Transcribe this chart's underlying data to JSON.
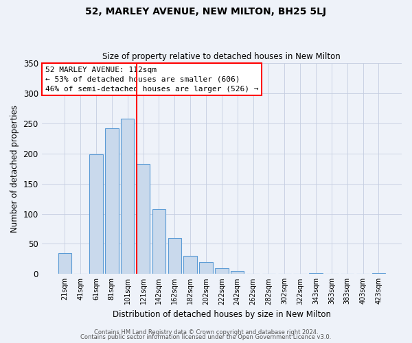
{
  "title": "52, MARLEY AVENUE, NEW MILTON, BH25 5LJ",
  "subtitle": "Size of property relative to detached houses in New Milton",
  "xlabel": "Distribution of detached houses by size in New Milton",
  "ylabel": "Number of detached properties",
  "bar_labels": [
    "21sqm",
    "41sqm",
    "61sqm",
    "81sqm",
    "101sqm",
    "121sqm",
    "142sqm",
    "162sqm",
    "182sqm",
    "202sqm",
    "222sqm",
    "242sqm",
    "262sqm",
    "282sqm",
    "302sqm",
    "322sqm",
    "343sqm",
    "363sqm",
    "383sqm",
    "403sqm",
    "423sqm"
  ],
  "bar_values": [
    34,
    0,
    199,
    242,
    258,
    183,
    107,
    60,
    30,
    20,
    10,
    5,
    0,
    0,
    0,
    0,
    2,
    0,
    0,
    0,
    2
  ],
  "bar_color": "#c9d9ec",
  "bar_edgecolor": "#5b9bd5",
  "vline_color": "red",
  "vline_index": 5,
  "ylim": [
    0,
    350
  ],
  "yticks": [
    0,
    50,
    100,
    150,
    200,
    250,
    300,
    350
  ],
  "annotation_title": "52 MARLEY AVENUE: 112sqm",
  "annotation_line1": "← 53% of detached houses are smaller (606)",
  "annotation_line2": "46% of semi-detached houses are larger (526) →",
  "footer1": "Contains HM Land Registry data © Crown copyright and database right 2024.",
  "footer2": "Contains public sector information licensed under the Open Government Licence v3.0.",
  "background_color": "#eef2f9",
  "plot_background": "#eef2f9"
}
